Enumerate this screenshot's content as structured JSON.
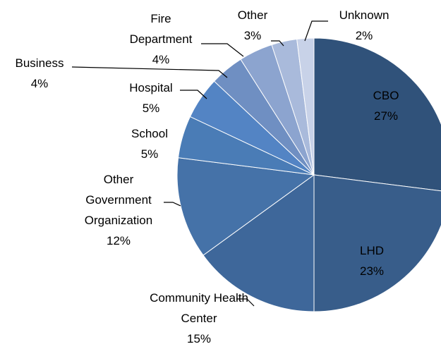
{
  "chart_data": {
    "type": "pie",
    "categories": [
      "CBO",
      "LHD",
      "Community Health Center",
      "Other Government Organization",
      "School",
      "Hospital",
      "Business",
      "Fire Department",
      "Other",
      "Unknown"
    ],
    "values": [
      27,
      23,
      15,
      12,
      5,
      5,
      4,
      4,
      3,
      2
    ],
    "value_labels": [
      "27%",
      "23%",
      "15%",
      "12%",
      "5%",
      "5%",
      "4%",
      "4%",
      "3%",
      "2%"
    ],
    "colors": [
      "#30527a",
      "#385d8a",
      "#3e679a",
      "#4572a8",
      "#4a7cb6",
      "#5384c4",
      "#6f8fc2",
      "#8ca4cf",
      "#a9badb",
      "#c8d2e8"
    ]
  }
}
